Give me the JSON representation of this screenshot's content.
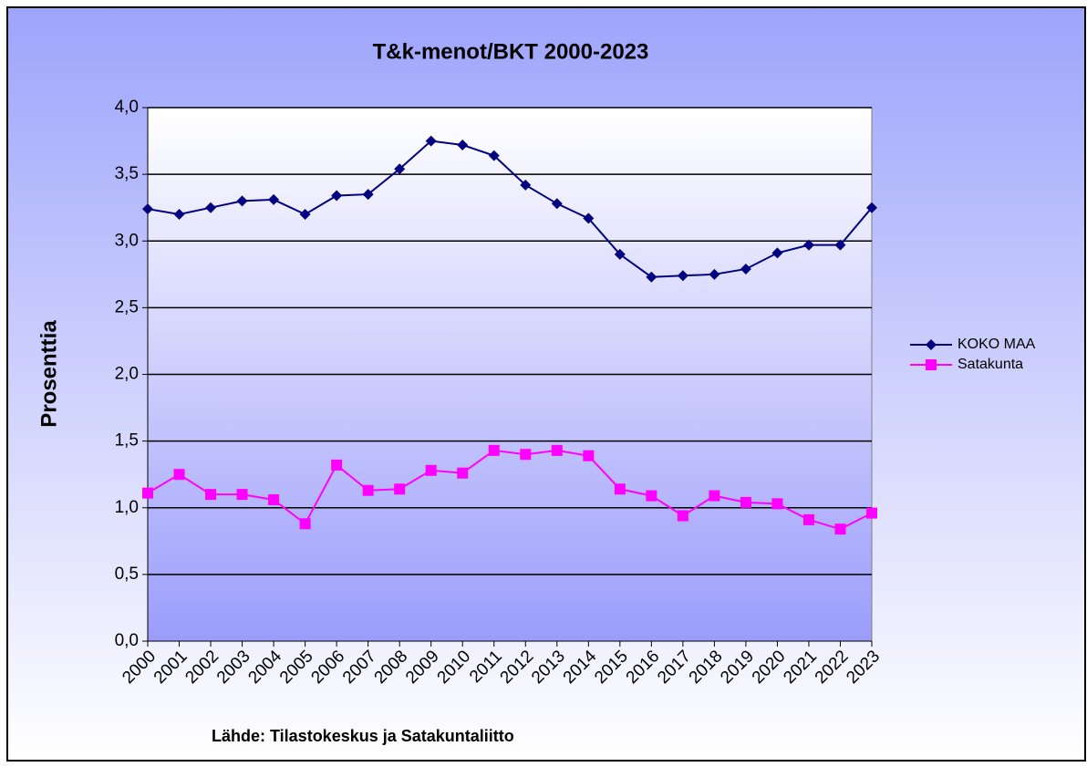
{
  "chart_data": {
    "type": "line",
    "title": "T&k-menot/BKT 2000-2023",
    "y_label": "Prosenttia",
    "annotation": "Lähde: Tilastokeskus ja Satakuntaliitto",
    "categories": [
      "2000",
      "2001",
      "2002",
      "2003",
      "2004",
      "2005",
      "2006",
      "2007",
      "2008",
      "2009",
      "2010",
      "2011",
      "2012",
      "2013",
      "2014",
      "2015",
      "2016",
      "2017",
      "2018",
      "2019",
      "2020",
      "2021",
      "2022",
      "2023"
    ],
    "series": [
      {
        "name": "KOKO MAA",
        "color": "#000080",
        "marker": "diamond",
        "values": [
          3.24,
          3.2,
          3.25,
          3.3,
          3.31,
          3.2,
          3.34,
          3.35,
          3.54,
          3.75,
          3.72,
          3.64,
          3.42,
          3.28,
          3.17,
          2.9,
          2.73,
          2.74,
          2.75,
          2.79,
          2.91,
          2.97,
          2.97,
          3.25
        ]
      },
      {
        "name": "Satakunta",
        "color": "#ff00ff",
        "marker": "square",
        "values": [
          1.11,
          1.25,
          1.1,
          1.1,
          1.06,
          0.88,
          1.32,
          1.13,
          1.14,
          1.28,
          1.26,
          1.43,
          1.4,
          1.43,
          1.39,
          1.14,
          1.09,
          0.94,
          1.09,
          1.04,
          1.03,
          0.91,
          0.84,
          0.96
        ]
      }
    ],
    "ylim": [
      0,
      4
    ],
    "yticks": [
      {
        "value": 0,
        "label": "0,0"
      },
      {
        "value": 0.5,
        "label": "0,5"
      },
      {
        "value": 1,
        "label": "1,0"
      },
      {
        "value": 1.5,
        "label": "1,5"
      },
      {
        "value": 2,
        "label": "2,0"
      },
      {
        "value": 2.5,
        "label": "2,5"
      },
      {
        "value": 3,
        "label": "3,0"
      },
      {
        "value": 3.5,
        "label": "3,5"
      },
      {
        "value": 4,
        "label": "4,0"
      }
    ],
    "grid": true,
    "legend": "right"
  }
}
